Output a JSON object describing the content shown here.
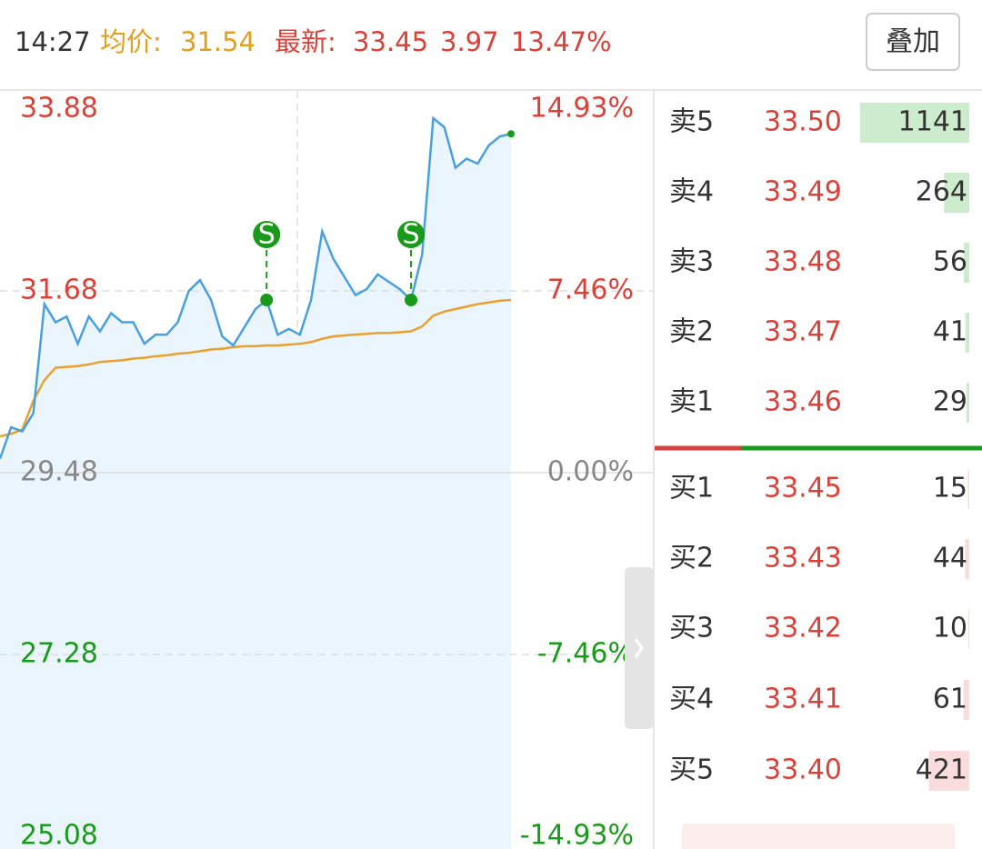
{
  "header": {
    "time": "14:27",
    "avg_label": "均价:",
    "avg": "31.54",
    "latest_label": "最新:",
    "latest_price": "33.45",
    "change": "3.97",
    "change_pct": "13.47%",
    "button": "叠加"
  },
  "chart_data": {
    "type": "line",
    "categories": [
      null,
      null,
      null,
      null,
      null,
      null,
      null,
      null,
      null,
      null,
      null,
      null,
      null,
      null,
      null,
      null,
      null,
      null,
      null,
      null,
      null,
      null,
      null,
      null,
      null,
      null,
      null,
      null,
      null,
      null,
      null,
      null,
      null,
      null,
      null,
      null,
      null,
      null,
      null,
      null,
      null,
      null,
      null,
      null,
      null,
      null,
      null
    ],
    "series": [
      {
        "color": "#4a9fde",
        "values": [
          29.65,
          30.03,
          29.98,
          30.2,
          31.52,
          31.3,
          31.37,
          31.04,
          31.37,
          31.19,
          31.41,
          31.3,
          31.3,
          31.04,
          31.15,
          31.15,
          31.3,
          31.68,
          31.81,
          31.57,
          31.13,
          31.02,
          31.24,
          31.46,
          31.57,
          31.15,
          31.22,
          31.15,
          31.57,
          32.4,
          32.07,
          31.85,
          31.63,
          31.7,
          31.88,
          31.79,
          31.7,
          31.57,
          32.12,
          33.77,
          33.66,
          33.17,
          33.28,
          33.22,
          33.44,
          33.55,
          33.58
        ]
      },
      {
        "color": "#e8a030",
        "values": [
          29.92,
          29.95,
          30.0,
          30.35,
          30.6,
          30.75,
          30.76,
          30.77,
          30.79,
          30.82,
          30.83,
          30.84,
          30.86,
          30.87,
          30.89,
          30.9,
          30.92,
          30.93,
          30.95,
          30.97,
          30.98,
          31.0,
          31.01,
          31.01,
          31.02,
          31.02,
          31.03,
          31.04,
          31.06,
          31.1,
          31.13,
          31.14,
          31.15,
          31.16,
          31.17,
          31.17,
          31.18,
          31.19,
          31.25,
          31.38,
          31.43,
          31.46,
          31.49,
          31.52,
          31.54,
          31.56,
          31.57
        ]
      }
    ],
    "signals": [
      {
        "label": "S",
        "point": 24
      },
      {
        "label": "S",
        "point": 37
      }
    ],
    "ylim": [
      25.08,
      33.88
    ],
    "yticks": [
      33.88,
      31.68,
      29.48,
      27.28,
      25.08
    ],
    "y2lim": [
      -14.93,
      14.93
    ],
    "y2ticks": [
      {
        "value": 14.93,
        "label": "14.93%"
      },
      {
        "value": 7.46,
        "label": "7.46%"
      },
      {
        "value": 0,
        "label": "0.00%"
      },
      {
        "value": -7.46,
        "label": "-7.46%"
      },
      {
        "value": -14.93,
        "label": "-14.93%"
      }
    ],
    "grid": true
  },
  "order_book": {
    "asks": [
      {
        "label": "卖5",
        "price": "33.50",
        "volume": 1141
      },
      {
        "label": "卖4",
        "price": "33.49",
        "volume": 264
      },
      {
        "label": "卖3",
        "price": "33.48",
        "volume": 56
      },
      {
        "label": "卖2",
        "price": "33.47",
        "volume": 41
      },
      {
        "label": "卖1",
        "price": "33.46",
        "volume": 29
      }
    ],
    "bids": [
      {
        "label": "买1",
        "price": "33.45",
        "volume": 15
      },
      {
        "label": "买2",
        "price": "33.43",
        "volume": 44
      },
      {
        "label": "买3",
        "price": "33.42",
        "volume": 10
      },
      {
        "label": "买4",
        "price": "33.41",
        "volume": 61
      },
      {
        "label": "买5",
        "price": "33.40",
        "volume": 421
      }
    ]
  }
}
